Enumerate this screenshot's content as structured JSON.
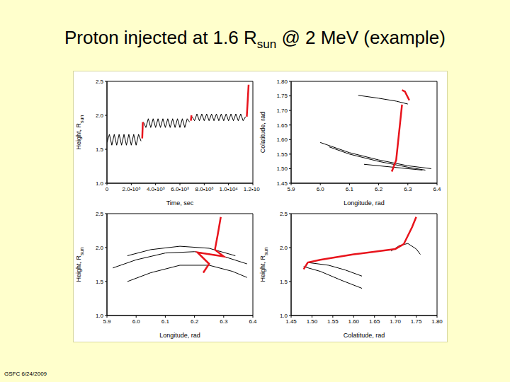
{
  "slide": {
    "title": {
      "text": "Proton injected at 1.6 R",
      "subscript": "sun",
      "rest": " @ 2 MeV (example)"
    },
    "footer": "GSFC 6/24/2009"
  },
  "chart_data": [
    {
      "type": "line",
      "xlabel": "Time, sec",
      "ylabel": {
        "text": "Height, R",
        "subscript": "sun"
      },
      "xlim": [
        0,
        12000
      ],
      "xticks": [
        0,
        {
          "value": 2000,
          "label": "2.0•10³"
        },
        {
          "value": 4000,
          "label": "4.0•10³"
        },
        {
          "value": 6000,
          "label": "6.0•10³"
        },
        {
          "value": 8000,
          "label": "8.0•10³"
        },
        {
          "value": 10000,
          "label": "1.0•10⁴"
        },
        {
          "value": 12000,
          "label": "1.2•10⁴"
        }
      ],
      "ylim": [
        1.0,
        2.5
      ],
      "yticks": [
        {
          "value": 1,
          "label": "1.0"
        },
        1.5,
        {
          "value": 2,
          "label": "2.0"
        },
        2.5
      ],
      "series": [
        {
          "color": "#000000",
          "line_style": "solid",
          "x": [
            0,
            200,
            400,
            600,
            800,
            1000,
            1200,
            1400,
            1600,
            1800,
            2000,
            2200,
            2400,
            2600,
            2800,
            2900,
            3000,
            3200,
            3400,
            3600,
            3800,
            4000,
            4200,
            4400,
            4600,
            4800,
            5000,
            5200,
            5400,
            5600,
            5800,
            6000,
            6200,
            6400,
            6600,
            6800,
            6900,
            7000,
            7200,
            7400,
            7600,
            7800,
            8000,
            8200,
            8400,
            8600,
            8800,
            9000,
            9200,
            9400,
            9600,
            9800,
            10000,
            10200,
            10400,
            10600,
            10800,
            11000,
            11200,
            11400
          ],
          "values": [
            1.6,
            1.72,
            1.56,
            1.72,
            1.56,
            1.72,
            1.56,
            1.72,
            1.56,
            1.72,
            1.56,
            1.72,
            1.56,
            1.72,
            1.62,
            null,
            1.9,
            1.82,
            1.95,
            1.82,
            1.95,
            1.82,
            1.95,
            1.82,
            1.95,
            1.82,
            1.95,
            1.82,
            1.95,
            1.82,
            1.95,
            1.82,
            1.95,
            1.82,
            1.95,
            1.9,
            null,
            1.98,
            1.92,
            2.02,
            1.92,
            2.02,
            1.92,
            2.02,
            1.92,
            2.02,
            1.92,
            2.02,
            1.92,
            2.02,
            1.92,
            2.02,
            1.92,
            2.02,
            1.92,
            2.02,
            1.92,
            2.02,
            1.92,
            1.98
          ]
        },
        {
          "color": "#e8141c",
          "line_style": "thick",
          "x": [
            2900,
            2950,
            2950,
            6900,
            6950,
            6950,
            11500,
            11650
          ],
          "values": [
            1.66,
            1.9,
            null,
            1.92,
            2.0,
            null,
            1.98,
            2.45
          ]
        }
      ]
    },
    {
      "type": "line",
      "xlabel": "Longitude, rad",
      "ylabel": "Colatitude, rad",
      "xlim": [
        5.9,
        6.4
      ],
      "xticks": [
        5.9,
        {
          "value": 6,
          "label": "6.0"
        },
        6.1,
        6.2,
        6.3,
        6.4
      ],
      "ylim": [
        1.45,
        1.8
      ],
      "yticks": [
        1.45,
        {
          "value": 1.5,
          "label": "1.50"
        },
        1.55,
        {
          "value": 1.6,
          "label": "1.60"
        },
        1.65,
        {
          "value": 1.7,
          "label": "1.70"
        },
        1.75,
        {
          "value": 1.8,
          "label": "1.80"
        }
      ],
      "series": [
        {
          "color": "#000000",
          "line_style": "solid",
          "x": [
            6.13,
            6.2,
            6.26,
            6.3
          ],
          "values": [
            1.752,
            1.742,
            1.732,
            1.722
          ]
        },
        {
          "color": "#000000",
          "line_style": "solid",
          "x": [
            6.0,
            6.1,
            6.2,
            6.3,
            6.38
          ],
          "values": [
            1.59,
            1.555,
            1.53,
            1.51,
            1.5
          ]
        },
        {
          "color": "#000000",
          "line_style": "solid",
          "x": [
            6.03,
            6.1,
            6.2,
            6.3,
            6.36
          ],
          "values": [
            1.575,
            1.55,
            1.525,
            1.505,
            1.495
          ]
        },
        {
          "color": "#000000",
          "line_style": "solid",
          "x": [
            6.15,
            6.25,
            6.35
          ],
          "values": [
            1.515,
            1.505,
            1.495
          ]
        },
        {
          "color": "#e8141c",
          "line_style": "thick",
          "x": [
            6.245,
            6.26,
            6.28,
            6.28,
            6.28,
            6.29,
            6.305
          ],
          "values": [
            1.49,
            1.53,
            1.72,
            null,
            1.77,
            1.765,
            1.735
          ]
        }
      ]
    },
    {
      "type": "line",
      "xlabel": "Longitude, rad",
      "ylabel": {
        "text": "Height, R",
        "subscript": "sun"
      },
      "xlim": [
        5.9,
        6.4
      ],
      "xticks": [
        5.9,
        {
          "value": 6,
          "label": "6.0"
        },
        6.1,
        6.2,
        6.3,
        6.4
      ],
      "ylim": [
        1.0,
        2.5
      ],
      "yticks": [
        {
          "value": 1,
          "label": "1.0"
        },
        1.5,
        {
          "value": 2,
          "label": "2.0"
        },
        2.5
      ],
      "series": [
        {
          "color": "#000000",
          "line_style": "solid",
          "x": [
            5.97,
            6.05,
            6.15,
            6.25,
            6.34
          ],
          "values": [
            1.88,
            1.97,
            2.02,
            1.99,
            1.88
          ]
        },
        {
          "color": "#000000",
          "line_style": "solid",
          "x": [
            5.92,
            6.0,
            6.1,
            6.2,
            6.3,
            6.38
          ],
          "values": [
            1.7,
            1.82,
            1.92,
            1.94,
            1.87,
            1.76
          ]
        },
        {
          "color": "#000000",
          "line_style": "solid",
          "x": [
            5.97,
            6.05,
            6.15,
            6.25,
            6.33,
            6.38
          ],
          "values": [
            1.5,
            1.63,
            1.74,
            1.74,
            1.65,
            1.56
          ]
        },
        {
          "color": "#e8141c",
          "line_style": "thick",
          "x": [
            6.23,
            6.25,
            6.21,
            6.3,
            6.27,
            6.28,
            6.29
          ],
          "values": [
            1.63,
            1.76,
            1.93,
            1.87,
            1.97,
            2.2,
            2.45
          ]
        }
      ]
    },
    {
      "type": "line",
      "xlabel": "Colatitude, rad",
      "ylabel": {
        "text": "Height, R",
        "subscript": "sun"
      },
      "xlim": [
        1.45,
        1.8
      ],
      "xticks": [
        1.45,
        {
          "value": 1.5,
          "label": "1.50"
        },
        1.55,
        {
          "value": 1.6,
          "label": "1.60"
        },
        1.65,
        {
          "value": 1.7,
          "label": "1.70"
        },
        1.75,
        {
          "value": 1.8,
          "label": "1.80"
        }
      ],
      "ylim": [
        1.0,
        2.5
      ],
      "yticks": [
        {
          "value": 1,
          "label": "1.0"
        },
        1.5,
        {
          "value": 2,
          "label": "2.0"
        },
        2.5
      ],
      "series": [
        {
          "color": "#000000",
          "line_style": "solid",
          "x": [
            1.48,
            1.52,
            1.57,
            1.62
          ],
          "values": [
            1.72,
            1.65,
            1.52,
            1.4
          ]
        },
        {
          "color": "#000000",
          "line_style": "solid",
          "x": [
            1.49,
            1.54,
            1.58,
            1.62
          ],
          "values": [
            1.78,
            1.74,
            1.67,
            1.58
          ]
        },
        {
          "color": "#000000",
          "line_style": "solid",
          "x": [
            1.69,
            1.71,
            1.73,
            1.75,
            1.76
          ],
          "values": [
            1.95,
            2.03,
            2.06,
            1.98,
            1.9
          ]
        },
        {
          "color": "#e8141c",
          "line_style": "thick",
          "x": [
            1.48,
            1.49,
            1.52,
            1.6,
            1.7,
            1.72,
            1.74,
            1.75
          ],
          "values": [
            1.68,
            1.78,
            1.82,
            1.9,
            1.98,
            2.05,
            2.3,
            2.45
          ]
        }
      ]
    }
  ]
}
